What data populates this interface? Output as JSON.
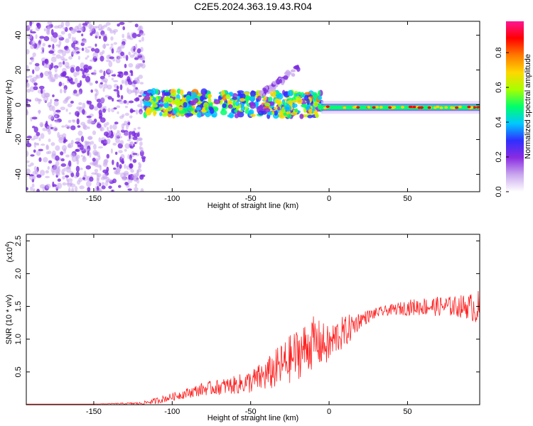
{
  "title": "C2E5.2024.363.19.43.R04",
  "chart_data": [
    {
      "type": "heatmap",
      "xlabel": "Height of straight line (km)",
      "ylabel": "Frequency (Hz)",
      "xlim": [
        -193,
        96
      ],
      "ylim": [
        -50,
        48
      ],
      "xticks": [
        -150,
        -100,
        -50,
        0,
        50
      ],
      "yticks": [
        -40,
        -20,
        0,
        20,
        40
      ],
      "colorbar": {
        "label": "Normalized spectral amplitude",
        "range": [
          0,
          0.98
        ],
        "ticks": [
          0.0,
          0.2,
          0.4,
          0.6,
          0.8
        ],
        "colors": [
          "#ffffff",
          "#c9a8ee",
          "#8a2be2",
          "#2f2fff",
          "#00c8ff",
          "#00ff6a",
          "#a8ff00",
          "#ffd700",
          "#ff7a00",
          "#ff0000",
          "#ff1493"
        ]
      },
      "features": [
        {
          "name": "noise region",
          "x_range": [
            -193,
            -118
          ],
          "y_range": [
            -50,
            48
          ],
          "amplitude": 0.1
        },
        {
          "name": "signal band",
          "x_range": [
            -118,
            -5
          ],
          "frequency_hz": [
            1,
            0
          ],
          "amplitude": 0.45
        },
        {
          "name": "rising branch",
          "x_range": [
            -45,
            -18
          ],
          "frequency_hz": [
            5,
            22
          ],
          "amplitude": 0.25
        },
        {
          "name": "steady trace",
          "x_range": [
            -5,
            96
          ],
          "frequency_hz": -1.5,
          "amplitude": 0.8
        }
      ]
    },
    {
      "type": "line",
      "xlabel": "Height of straight line (km)",
      "ylabel": "SNR (10 * v/v)",
      "y_multiplier": "(x10",
      "y_multiplier_exp": "4",
      "y_multiplier_close": ")",
      "xlim": [
        -193,
        96
      ],
      "ylim": [
        0,
        2.6
      ],
      "xticks": [
        -150,
        -100,
        -50,
        0,
        50
      ],
      "yticks": [
        0.5,
        1.0,
        1.5,
        2.0,
        2.5
      ],
      "ytick_labels": [
        "0.5",
        "1.0",
        "1.5",
        "2.0",
        "2.5"
      ],
      "color": "#ff2020",
      "series": [
        {
          "x": [
            -193,
            -150,
            -120,
            -110,
            -100,
            -90,
            -80,
            -70,
            -60,
            -50,
            -40,
            -30,
            -20,
            -10,
            0,
            5,
            10,
            15,
            20,
            25,
            30,
            40,
            50,
            60,
            70,
            80,
            90,
            96
          ],
          "values": [
            0.01,
            0.01,
            0.02,
            0.06,
            0.12,
            0.18,
            0.24,
            0.27,
            0.3,
            0.35,
            0.45,
            0.6,
            0.78,
            0.95,
            0.9,
            1.05,
            1.1,
            1.2,
            1.3,
            1.35,
            1.4,
            1.45,
            1.48,
            1.5,
            1.5,
            1.5,
            1.5,
            1.45
          ],
          "spread": [
            0.0,
            0.0,
            0.02,
            0.05,
            0.06,
            0.08,
            0.1,
            0.12,
            0.14,
            0.18,
            0.25,
            0.35,
            0.4,
            0.4,
            0.3,
            0.28,
            0.25,
            0.2,
            0.12,
            0.1,
            0.08,
            0.08,
            0.12,
            0.14,
            0.15,
            0.16,
            0.2,
            0.3
          ]
        }
      ]
    }
  ]
}
